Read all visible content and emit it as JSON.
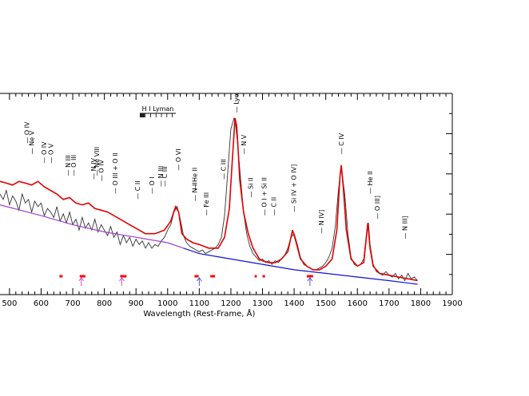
{
  "chart_data": {
    "type": "line",
    "title": "",
    "xlabel": "Wavelength (Rest-Frame, Å)",
    "ylabel": "",
    "xlim": [
      470,
      1900
    ],
    "x_ticks": [
      500,
      600,
      700,
      800,
      900,
      1000,
      1100,
      1200,
      1300,
      1400,
      1500,
      1600,
      1700,
      1800,
      1900
    ],
    "grid": false,
    "colors": {
      "observed": "#333333",
      "model": "#e00000",
      "continuum_far": "#a040d0",
      "continuum_near": "#1010d8",
      "masked_regions": "#ff0000",
      "arrows_magenta": "#d050d0",
      "arrows_blue": "#5050e0"
    },
    "series": [
      {
        "role": "continuum",
        "x": [
          470,
          600,
          700,
          800,
          900,
          1000,
          1050,
          1100,
          1200,
          1300,
          1400,
          1500,
          1600,
          1700,
          1790
        ],
        "y": [
          0.44,
          0.38,
          0.33,
          0.29,
          0.26,
          0.23,
          0.2,
          0.17,
          0.14,
          0.11,
          0.08,
          0.06,
          0.04,
          0.02,
          0.0
        ]
      },
      {
        "role": "model",
        "x": [
          470,
          490,
          510,
          530,
          550,
          570,
          590,
          610,
          630,
          650,
          670,
          690,
          710,
          730,
          750,
          770,
          790,
          810,
          830,
          850,
          870,
          890,
          910,
          930,
          960,
          990,
          1010,
          1025,
          1035,
          1045,
          1060,
          1080,
          1100,
          1130,
          1160,
          1180,
          1195,
          1205,
          1213,
          1218,
          1222,
          1228,
          1240,
          1255,
          1270,
          1290,
          1300,
          1320,
          1340,
          1360,
          1380,
          1395,
          1405,
          1420,
          1440,
          1460,
          1480,
          1500,
          1520,
          1535,
          1545,
          1549,
          1555,
          1565,
          1580,
          1600,
          1620,
          1633,
          1640,
          1650,
          1670,
          1700,
          1730,
          1760,
          1790
        ],
        "y": [
          0.57,
          0.56,
          0.55,
          0.57,
          0.56,
          0.55,
          0.57,
          0.54,
          0.52,
          0.5,
          0.47,
          0.48,
          0.45,
          0.44,
          0.45,
          0.42,
          0.41,
          0.4,
          0.38,
          0.36,
          0.34,
          0.32,
          0.3,
          0.28,
          0.28,
          0.3,
          0.35,
          0.43,
          0.4,
          0.28,
          0.25,
          0.23,
          0.22,
          0.2,
          0.2,
          0.26,
          0.42,
          0.7,
          0.92,
          0.88,
          0.78,
          0.58,
          0.4,
          0.28,
          0.2,
          0.14,
          0.13,
          0.12,
          0.12,
          0.14,
          0.18,
          0.3,
          0.24,
          0.14,
          0.1,
          0.08,
          0.08,
          0.1,
          0.14,
          0.3,
          0.6,
          0.66,
          0.55,
          0.3,
          0.14,
          0.1,
          0.12,
          0.34,
          0.2,
          0.1,
          0.06,
          0.05,
          0.04,
          0.03,
          0.02
        ]
      },
      {
        "role": "observed",
        "x": [
          470,
          480,
          490,
          500,
          510,
          520,
          530,
          540,
          550,
          560,
          570,
          580,
          590,
          600,
          610,
          620,
          630,
          640,
          650,
          660,
          670,
          680,
          690,
          700,
          710,
          720,
          730,
          740,
          750,
          760,
          770,
          780,
          790,
          800,
          810,
          820,
          830,
          840,
          850,
          860,
          870,
          880,
          890,
          900,
          910,
          920,
          930,
          940,
          950,
          960,
          970,
          980,
          990,
          1000,
          1010,
          1020,
          1030,
          1040,
          1050,
          1060,
          1070,
          1080,
          1090,
          1100,
          1110,
          1120,
          1130,
          1140,
          1150,
          1160,
          1170,
          1180,
          1190,
          1200,
          1210,
          1215,
          1220,
          1230,
          1240,
          1250,
          1260,
          1270,
          1280,
          1290,
          1300,
          1310,
          1320,
          1330,
          1340,
          1350,
          1360,
          1370,
          1380,
          1390,
          1400,
          1410,
          1420,
          1430,
          1440,
          1450,
          1460,
          1470,
          1480,
          1490,
          1500,
          1510,
          1520,
          1530,
          1540,
          1549,
          1560,
          1570,
          1580,
          1590,
          1600,
          1610,
          1620,
          1630,
          1635,
          1640,
          1650,
          1660,
          1670,
          1680,
          1690,
          1700,
          1710,
          1720,
          1730,
          1740,
          1750,
          1760,
          1770,
          1780,
          1790
        ],
        "y": [
          0.5,
          0.47,
          0.52,
          0.44,
          0.49,
          0.46,
          0.41,
          0.5,
          0.45,
          0.47,
          0.4,
          0.46,
          0.43,
          0.45,
          0.38,
          0.42,
          0.4,
          0.37,
          0.43,
          0.35,
          0.39,
          0.34,
          0.4,
          0.33,
          0.36,
          0.3,
          0.37,
          0.31,
          0.34,
          0.3,
          0.36,
          0.29,
          0.33,
          0.3,
          0.27,
          0.32,
          0.26,
          0.29,
          0.22,
          0.27,
          0.23,
          0.26,
          0.21,
          0.25,
          0.22,
          0.24,
          0.2,
          0.23,
          0.2,
          0.22,
          0.21,
          0.24,
          0.26,
          0.3,
          0.33,
          0.4,
          0.43,
          0.36,
          0.27,
          0.23,
          0.21,
          0.2,
          0.19,
          0.18,
          0.19,
          0.17,
          0.18,
          0.19,
          0.2,
          0.22,
          0.26,
          0.38,
          0.62,
          0.86,
          0.92,
          0.88,
          0.8,
          0.6,
          0.4,
          0.28,
          0.21,
          0.17,
          0.15,
          0.13,
          0.14,
          0.12,
          0.13,
          0.11,
          0.13,
          0.12,
          0.14,
          0.16,
          0.2,
          0.26,
          0.28,
          0.22,
          0.15,
          0.11,
          0.1,
          0.09,
          0.08,
          0.08,
          0.09,
          0.1,
          0.12,
          0.15,
          0.2,
          0.32,
          0.52,
          0.65,
          0.5,
          0.28,
          0.15,
          0.11,
          0.1,
          0.11,
          0.14,
          0.3,
          0.34,
          0.22,
          0.11,
          0.07,
          0.06,
          0.05,
          0.07,
          0.05,
          0.04,
          0.06,
          0.03,
          0.05,
          0.02,
          0.06,
          0.03,
          0.04,
          0.02
        ]
      }
    ],
    "masked_regions": [
      [
        658,
        668
      ],
      [
        722,
        740
      ],
      [
        850,
        870
      ],
      [
        1085,
        1098
      ],
      [
        1135,
        1150
      ],
      [
        1275,
        1282
      ],
      [
        1300,
        1308
      ],
      [
        1440,
        1460
      ]
    ],
    "arrows": [
      {
        "x": 727,
        "color_key": "arrows_magenta"
      },
      {
        "x": 855,
        "color_key": "arrows_magenta"
      },
      {
        "x": 1100,
        "color_key": "arrows_blue"
      },
      {
        "x": 1450,
        "color_key": "arrows_blue"
      }
    ],
    "lyman_bar": {
      "label": "H I Lyman",
      "x_start": 912,
      "x_end": 1026
    },
    "line_labels": [
      {
        "text": "O IV",
        "x": 555,
        "level": 0.78
      },
      {
        "text": "Ne V",
        "x": 570,
        "level": 0.72
      },
      {
        "text": "O IV",
        "x": 609,
        "level": 0.67
      },
      {
        "text": "O V",
        "x": 630,
        "level": 0.67
      },
      {
        "text": "N III",
        "x": 685,
        "level": 0.6
      },
      {
        "text": "O III",
        "x": 703,
        "level": 0.6
      },
      {
        "text": "N IV",
        "x": 766,
        "level": 0.58
      },
      {
        "text": "Ne VIII",
        "x": 776,
        "level": 0.6
      },
      {
        "text": "O IV",
        "x": 790,
        "level": 0.57
      },
      {
        "text": "O III + O II",
        "x": 834,
        "level": 0.5
      },
      {
        "text": "C II",
        "x": 904,
        "level": 0.47
      },
      {
        "text": "O I",
        "x": 950,
        "level": 0.5
      },
      {
        "text": "N III",
        "x": 978,
        "level": 0.54
      },
      {
        "text": "C III",
        "x": 990,
        "level": 0.54
      },
      {
        "text": "O VI",
        "x": 1034,
        "level": 0.63
      },
      {
        "text": "He II",
        "x": 1085,
        "level": 0.52
      },
      {
        "text": "N II",
        "x": 1085,
        "level": 0.46
      },
      {
        "text": "Fe III",
        "x": 1122,
        "level": 0.38
      },
      {
        "text": "C III",
        "x": 1176,
        "level": 0.58
      },
      {
        "text": "Lyα",
        "x": 1216,
        "level": 0.95
      },
      {
        "text": "N V",
        "x": 1240,
        "level": 0.72
      },
      {
        "text": "Si II",
        "x": 1262,
        "level": 0.48
      },
      {
        "text": "O I + Si II",
        "x": 1305,
        "level": 0.38
      },
      {
        "text": "C II",
        "x": 1335,
        "level": 0.38
      },
      {
        "text": "Si IV + O IV]",
        "x": 1398,
        "level": 0.4
      },
      {
        "text": "N IV]",
        "x": 1486,
        "level": 0.28
      },
      {
        "text": "C IV",
        "x": 1549,
        "level": 0.72
      },
      {
        "text": "He II",
        "x": 1640,
        "level": 0.5
      },
      {
        "text": "O III]",
        "x": 1663,
        "level": 0.36
      },
      {
        "text": "N III]",
        "x": 1750,
        "level": 0.25
      }
    ]
  }
}
